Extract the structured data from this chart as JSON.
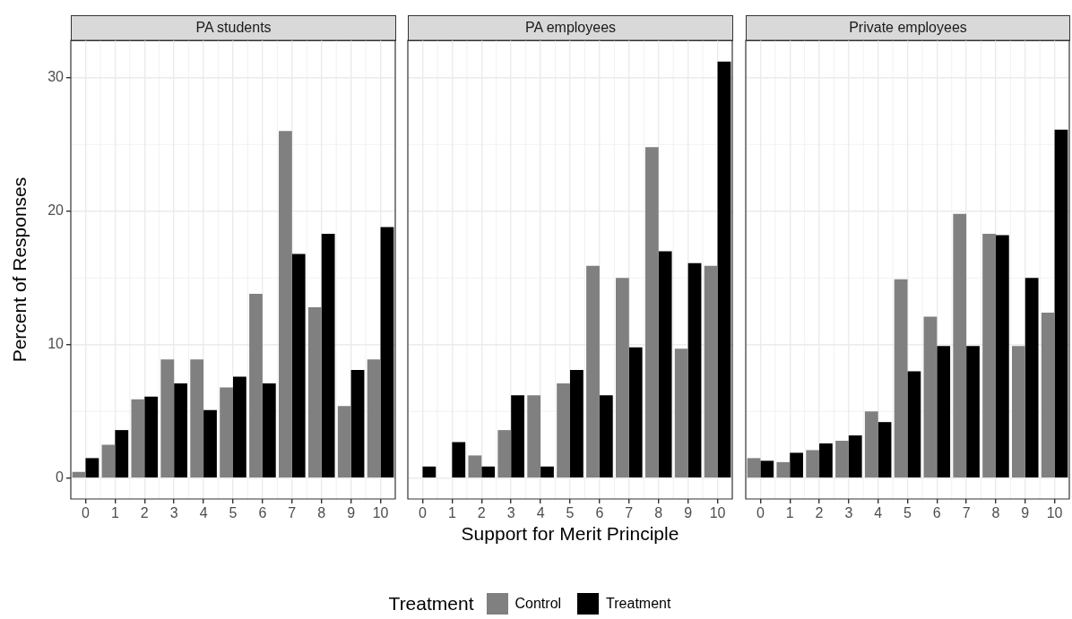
{
  "chart_data": [
    {
      "type": "bar",
      "title": "PA students",
      "ylabel": "Percent of Responses",
      "categories": [
        "0",
        "1",
        "2",
        "3",
        "4",
        "5",
        "6",
        "7",
        "8",
        "9",
        "10"
      ],
      "series": [
        {
          "color": "#808080",
          "values": [
            0.47,
            2.5,
            5.9,
            8.9,
            8.9,
            6.8,
            13.8,
            26.0,
            12.8,
            5.4,
            8.9
          ]
        },
        {
          "color": "#000000",
          "values": [
            1.5,
            3.6,
            6.1,
            7.1,
            5.1,
            7.6,
            7.1,
            16.8,
            18.3,
            8.1,
            18.8
          ]
        }
      ],
      "ylim": [
        -1.56,
        32.8
      ],
      "yticks": [
        0,
        10,
        20,
        30
      ],
      "grid": true
    },
    {
      "type": "bar",
      "title": "PA employees",
      "xlabel": "Support for Merit Principle",
      "legend_title": "Treatment",
      "legend": "bottom",
      "categories": [
        "0",
        "1",
        "2",
        "3",
        "4",
        "5",
        "6",
        "7",
        "8",
        "9",
        "10"
      ],
      "series": [
        {
          "name": "Control",
          "color": "#808080",
          "values": [
            null,
            null,
            1.7,
            3.6,
            6.2,
            7.1,
            15.9,
            15.0,
            24.8,
            9.7,
            15.9
          ]
        },
        {
          "name": "Treatment",
          "color": "#000000",
          "values": [
            0.87,
            2.7,
            0.87,
            6.2,
            0.87,
            8.1,
            6.2,
            9.8,
            17.0,
            16.1,
            31.2
          ]
        }
      ],
      "ylim": [
        -1.56,
        32.8
      ],
      "yticks": [
        0,
        10,
        20,
        30
      ],
      "tick_labels": "x",
      "grid": true
    },
    {
      "type": "bar",
      "title": "Private employees",
      "categories": [
        "0",
        "1",
        "2",
        "3",
        "4",
        "5",
        "6",
        "7",
        "8",
        "9",
        "10"
      ],
      "series": [
        {
          "color": "#808080",
          "values": [
            1.5,
            1.2,
            2.1,
            2.8,
            5.0,
            14.9,
            12.1,
            19.8,
            18.3,
            9.9,
            12.4
          ]
        },
        {
          "color": "#000000",
          "values": [
            1.3,
            1.9,
            2.6,
            3.2,
            4.2,
            8.0,
            9.9,
            9.9,
            18.2,
            15.0,
            26.1
          ]
        }
      ],
      "ylim": [
        -1.56,
        32.8
      ],
      "yticks": [
        0,
        10,
        20,
        30
      ],
      "tick_labels": "x",
      "grid": true
    }
  ]
}
